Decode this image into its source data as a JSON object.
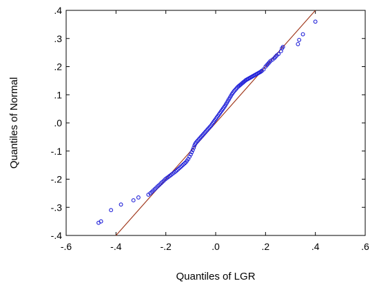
{
  "chart_data": {
    "type": "scatter",
    "title": "",
    "xlabel": "Quantiles of LGR",
    "ylabel": "Quantiles of Normal",
    "xlim": [
      -0.6,
      0.6
    ],
    "ylim": [
      -0.4,
      0.4
    ],
    "xticks": [
      -0.6,
      -0.4,
      -0.2,
      0.0,
      0.2,
      0.4,
      0.6
    ],
    "xtick_labels": [
      "-.6",
      "-.4",
      "-.2",
      ".0",
      ".2",
      ".4",
      ".6"
    ],
    "yticks": [
      -0.4,
      -0.3,
      -0.2,
      -0.1,
      0.0,
      0.1,
      0.2,
      0.3,
      0.4
    ],
    "ytick_labels": [
      "-.4",
      "-.3",
      "-.2",
      "-.1",
      ".0",
      ".1",
      ".2",
      ".3",
      ".4"
    ],
    "grid": false,
    "legend": "none",
    "colors": {
      "points": "#2020d8",
      "reference_line": "#a0381c"
    },
    "reference_line": {
      "x": [
        -0.4,
        0.4
      ],
      "y": [
        -0.4,
        0.4
      ]
    },
    "series": [
      {
        "x": [
          -0.47,
          -0.46,
          -0.42,
          -0.38,
          -0.33,
          -0.31,
          -0.27,
          -0.262,
          -0.256,
          -0.25,
          -0.244,
          -0.238,
          -0.232,
          -0.226,
          -0.22,
          -0.214,
          -0.208,
          -0.202,
          -0.196,
          -0.19,
          -0.184,
          -0.178,
          -0.172,
          -0.166,
          -0.16,
          -0.155,
          -0.15,
          -0.145,
          -0.14,
          -0.135,
          -0.13,
          -0.125,
          -0.12,
          -0.115,
          -0.11,
          -0.105,
          -0.1,
          -0.096,
          -0.092,
          -0.088,
          -0.085,
          -0.082,
          -0.079,
          -0.075,
          -0.071,
          -0.067,
          -0.063,
          -0.059,
          -0.055,
          -0.051,
          -0.047,
          -0.043,
          -0.039,
          -0.035,
          -0.031,
          -0.027,
          -0.023,
          -0.019,
          -0.015,
          -0.011,
          -0.007,
          -0.003,
          0.001,
          0.005,
          0.009,
          0.013,
          0.017,
          0.021,
          0.025,
          0.029,
          0.033,
          0.037,
          0.041,
          0.045,
          0.049,
          0.053,
          0.057,
          0.061,
          0.065,
          0.069,
          0.073,
          0.077,
          0.081,
          0.085,
          0.089,
          0.093,
          0.097,
          0.101,
          0.105,
          0.109,
          0.113,
          0.117,
          0.121,
          0.125,
          0.129,
          0.133,
          0.137,
          0.141,
          0.145,
          0.149,
          0.153,
          0.157,
          0.161,
          0.165,
          0.169,
          0.173,
          0.177,
          0.181,
          0.185,
          0.192,
          0.2,
          0.205,
          0.21,
          0.215,
          0.22,
          0.228,
          0.235,
          0.24,
          0.245,
          0.252,
          0.262,
          0.266,
          0.27,
          0.33,
          0.335,
          0.35,
          0.4
        ],
        "y": [
          -0.355,
          -0.35,
          -0.31,
          -0.29,
          -0.275,
          -0.265,
          -0.255,
          -0.25,
          -0.245,
          -0.24,
          -0.235,
          -0.23,
          -0.225,
          -0.22,
          -0.215,
          -0.21,
          -0.205,
          -0.2,
          -0.196,
          -0.192,
          -0.188,
          -0.184,
          -0.18,
          -0.176,
          -0.172,
          -0.168,
          -0.164,
          -0.16,
          -0.156,
          -0.152,
          -0.148,
          -0.144,
          -0.14,
          -0.134,
          -0.128,
          -0.12,
          -0.112,
          -0.104,
          -0.096,
          -0.088,
          -0.08,
          -0.074,
          -0.07,
          -0.066,
          -0.062,
          -0.058,
          -0.054,
          -0.05,
          -0.046,
          -0.042,
          -0.038,
          -0.034,
          -0.03,
          -0.026,
          -0.022,
          -0.018,
          -0.014,
          -0.01,
          -0.005,
          0.0,
          0.005,
          0.01,
          0.015,
          0.02,
          0.025,
          0.03,
          0.035,
          0.04,
          0.045,
          0.05,
          0.055,
          0.06,
          0.066,
          0.072,
          0.078,
          0.084,
          0.09,
          0.096,
          0.102,
          0.107,
          0.112,
          0.116,
          0.12,
          0.124,
          0.128,
          0.131,
          0.134,
          0.137,
          0.14,
          0.143,
          0.146,
          0.149,
          0.152,
          0.154,
          0.156,
          0.158,
          0.16,
          0.162,
          0.164,
          0.166,
          0.168,
          0.17,
          0.172,
          0.174,
          0.176,
          0.178,
          0.18,
          0.182,
          0.185,
          0.19,
          0.2,
          0.205,
          0.21,
          0.215,
          0.22,
          0.225,
          0.23,
          0.235,
          0.24,
          0.245,
          0.255,
          0.265,
          0.27,
          0.28,
          0.295,
          0.315,
          0.36
        ]
      }
    ]
  }
}
